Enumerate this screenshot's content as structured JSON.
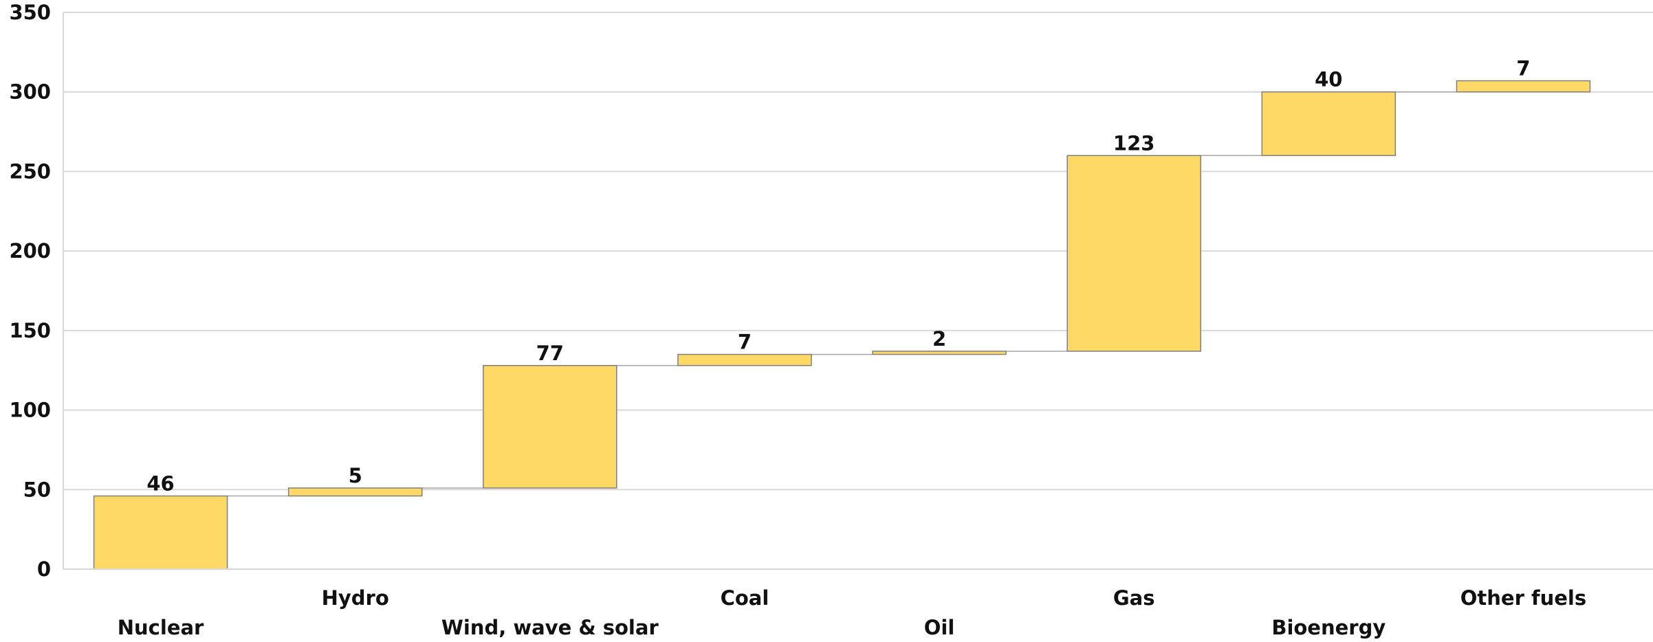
{
  "chart_data": {
    "type": "bar",
    "subtype": "waterfall",
    "title": "",
    "xlabel": "",
    "ylabel": "",
    "ylim": [
      0,
      350
    ],
    "yticks": [
      0,
      50,
      100,
      150,
      200,
      250,
      300,
      350
    ],
    "grid": true,
    "legend": "none",
    "categories": [
      "Nuclear",
      "Hydro",
      "Wind, wave & solar",
      "Coal",
      "Oil",
      "Gas",
      "Bioenergy",
      "Other fuels"
    ],
    "values": [
      46,
      5,
      77,
      7,
      2,
      123,
      40,
      7
    ],
    "colors": {
      "bar_fill": "#FFD966",
      "bar_stroke": "#7F7F7F",
      "grid": "#D9D9D9",
      "connector": "#A6A6A6",
      "text": "#111111"
    }
  }
}
